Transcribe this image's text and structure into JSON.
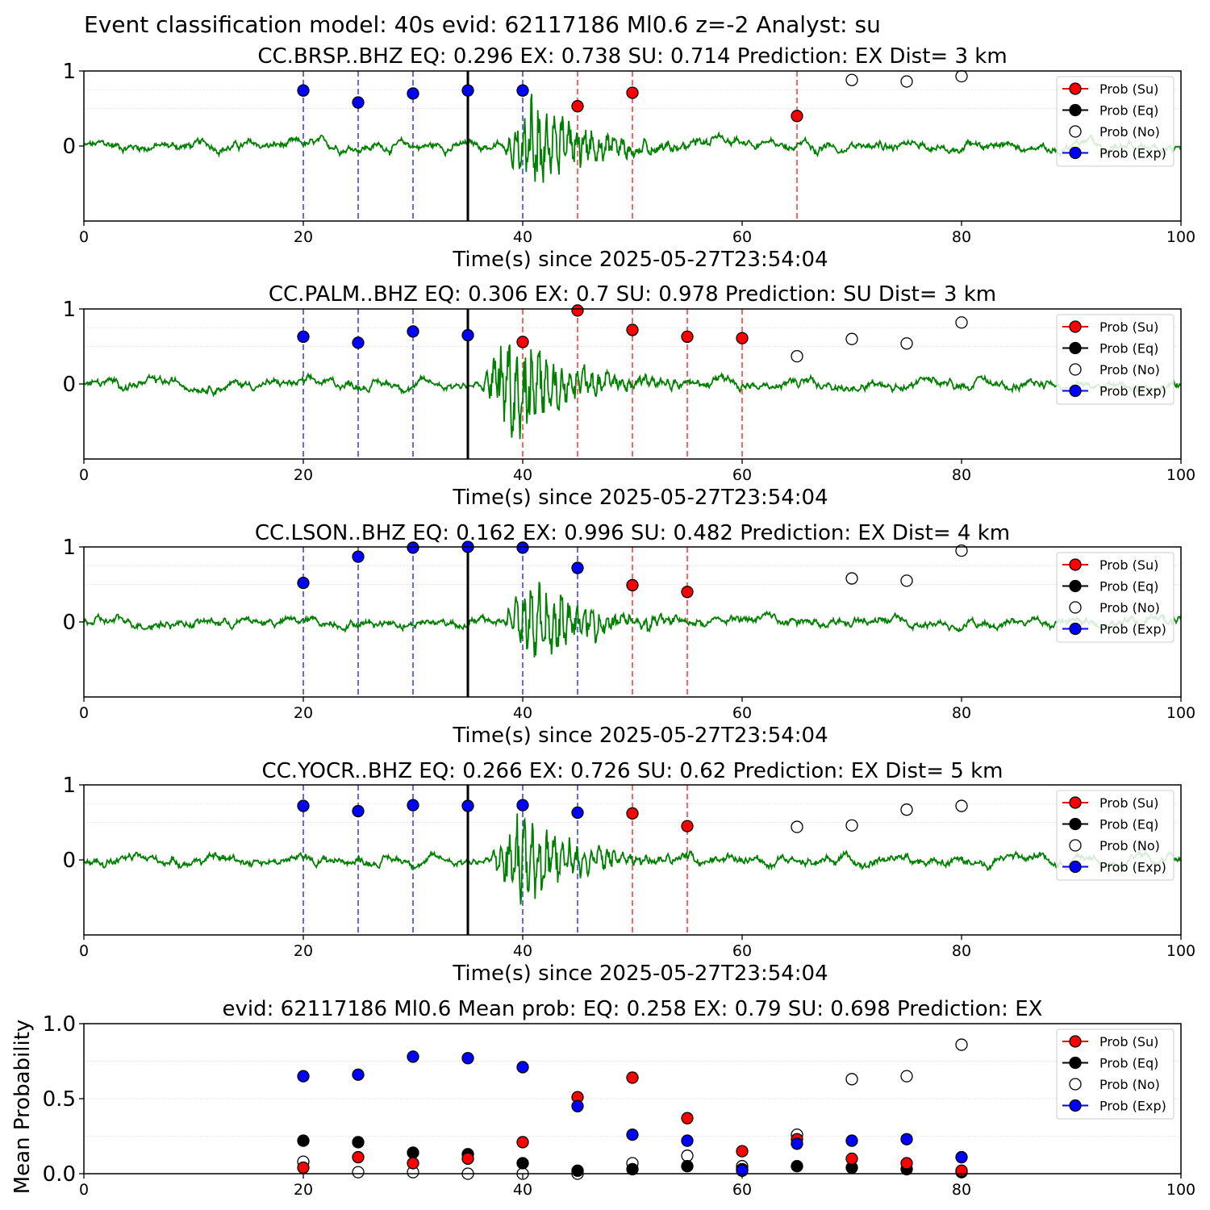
{
  "suptitle": "Event classification model: 40s evid: 62117186 Ml0.6 z=-2 Analyst: su",
  "colors": {
    "su": "#ff0000",
    "eq": "#000000",
    "no": "#ffffff",
    "exp": "#0000ff",
    "trace": "#008000",
    "vline_exp": "#5555ff",
    "vline_su": "#ff5555",
    "pick": "#000000"
  },
  "legend": [
    "Prob (Su)",
    "Prob (Eq)",
    "Prob (No)",
    "Prob (Exp)"
  ],
  "chart_data": [
    {
      "type": "scatter",
      "station": "CC.BRSP..BHZ",
      "title": "CC.BRSP..BHZ   EQ: 0.296  EX: 0.738  SU: 0.714   Prediction: EX    Dist= 3 km",
      "xlabel": "Time(s) since 2025-05-27T23:54:04",
      "xlim": [
        0,
        100
      ],
      "ylim": [
        -1,
        1
      ],
      "xticks": [
        "0",
        "20",
        "40",
        "60",
        "80",
        "100"
      ],
      "yticks": [
        "0",
        "1"
      ],
      "pick_time": 35,
      "event_onset": 38,
      "trace_amplitude": 0.55,
      "exp_lines": [
        20,
        25,
        30,
        40
      ],
      "su_lines": [
        45,
        50,
        65
      ],
      "series": [
        {
          "name": "Prob (Exp)",
          "x": [
            20,
            25,
            30,
            35,
            40
          ],
          "y": [
            0.74,
            0.58,
            0.7,
            0.74,
            0.74
          ]
        },
        {
          "name": "Prob (Su)",
          "x": [
            45,
            50,
            65
          ],
          "y": [
            0.53,
            0.71,
            0.4
          ]
        },
        {
          "name": "Prob (No)",
          "x": [
            70,
            75,
            80
          ],
          "y": [
            0.88,
            0.86,
            0.93
          ]
        }
      ]
    },
    {
      "type": "scatter",
      "station": "CC.PALM..BHZ",
      "title": "CC.PALM..BHZ   EQ: 0.306  EX: 0.7  SU: 0.978   Prediction: SU    Dist= 3 km",
      "xlabel": "Time(s) since 2025-05-27T23:54:04",
      "xlim": [
        0,
        100
      ],
      "ylim": [
        -1,
        1
      ],
      "xticks": [
        "0",
        "20",
        "40",
        "60",
        "80",
        "100"
      ],
      "yticks": [
        "0",
        "1"
      ],
      "pick_time": 35,
      "event_onset": 36,
      "trace_amplitude": 0.7,
      "exp_lines": [
        20,
        25,
        30
      ],
      "su_lines": [
        40,
        45,
        50,
        55,
        60
      ],
      "series": [
        {
          "name": "Prob (Exp)",
          "x": [
            20,
            25,
            30,
            35
          ],
          "y": [
            0.63,
            0.55,
            0.7,
            0.65
          ]
        },
        {
          "name": "Prob (Su)",
          "x": [
            40,
            45,
            50,
            55,
            60
          ],
          "y": [
            0.56,
            0.98,
            0.72,
            0.63,
            0.61
          ]
        },
        {
          "name": "Prob (No)",
          "x": [
            65,
            70,
            75,
            80
          ],
          "y": [
            0.37,
            0.6,
            0.54,
            0.82
          ]
        }
      ]
    },
    {
      "type": "scatter",
      "station": "CC.LSON..BHZ",
      "title": "CC.LSON..BHZ   EQ: 0.162  EX: 0.996  SU: 0.482   Prediction: EX    Dist= 4 km",
      "xlabel": "Time(s) since 2025-05-27T23:54:04",
      "xlim": [
        0,
        100
      ],
      "ylim": [
        -1,
        1
      ],
      "xticks": [
        "0",
        "20",
        "40",
        "60",
        "80",
        "100"
      ],
      "yticks": [
        "0",
        "1"
      ],
      "pick_time": 35,
      "event_onset": 38,
      "trace_amplitude": 0.5,
      "exp_lines": [
        20,
        25,
        30,
        40,
        45
      ],
      "su_lines": [
        50,
        55
      ],
      "series": [
        {
          "name": "Prob (Exp)",
          "x": [
            20,
            25,
            30,
            35,
            40,
            45
          ],
          "y": [
            0.52,
            0.87,
            0.99,
            1.0,
            0.99,
            0.72
          ]
        },
        {
          "name": "Prob (Su)",
          "x": [
            50,
            55
          ],
          "y": [
            0.49,
            0.4
          ]
        },
        {
          "name": "Prob (No)",
          "x": [
            70,
            75,
            80
          ],
          "y": [
            0.58,
            0.55,
            0.95
          ]
        }
      ]
    },
    {
      "type": "scatter",
      "station": "CC.YOCR..BHZ",
      "title": "CC.YOCR..BHZ   EQ: 0.266  EX: 0.726  SU: 0.62   Prediction: EX    Dist= 5 km",
      "xlabel": "Time(s) since 2025-05-27T23:54:04",
      "xlim": [
        0,
        100
      ],
      "ylim": [
        -1,
        1
      ],
      "xticks": [
        "0",
        "20",
        "40",
        "60",
        "80",
        "100"
      ],
      "yticks": [
        "0",
        "1"
      ],
      "pick_time": 35,
      "event_onset": 37,
      "trace_amplitude": 0.55,
      "exp_lines": [
        20,
        25,
        30,
        40,
        45
      ],
      "su_lines": [
        50,
        55
      ],
      "series": [
        {
          "name": "Prob (Exp)",
          "x": [
            20,
            25,
            30,
            35,
            40,
            45
          ],
          "y": [
            0.72,
            0.65,
            0.73,
            0.72,
            0.73,
            0.63
          ]
        },
        {
          "name": "Prob (Su)",
          "x": [
            50,
            55
          ],
          "y": [
            0.62,
            0.45
          ]
        },
        {
          "name": "Prob (No)",
          "x": [
            65,
            70,
            75,
            80
          ],
          "y": [
            0.44,
            0.46,
            0.67,
            0.72
          ]
        }
      ]
    },
    {
      "type": "scatter",
      "title": "evid: 62117186  Ml0.6   Mean prob:   EQ: 0.258  EX: 0.79  SU: 0.698   Prediction: EX",
      "ylabel": "Mean Probability",
      "xlim": [
        0,
        100
      ],
      "ylim": [
        0,
        1
      ],
      "xticks": [
        "0",
        "20",
        "40",
        "60",
        "80",
        "100"
      ],
      "yticks": [
        "0.0",
        "0.5",
        "1.0"
      ],
      "x": [
        20,
        25,
        30,
        35,
        40,
        45,
        50,
        55,
        60,
        65,
        70,
        75,
        80
      ],
      "series": [
        {
          "name": "Prob (No)",
          "y": [
            0.08,
            0.01,
            0.01,
            0.0,
            0.0,
            0.0,
            0.07,
            0.12,
            0.05,
            0.26,
            0.63,
            0.65,
            0.86
          ]
        },
        {
          "name": "Prob (Eq)",
          "y": [
            0.22,
            0.21,
            0.14,
            0.13,
            0.07,
            0.02,
            0.03,
            0.05,
            0.03,
            0.05,
            0.04,
            0.03,
            0.01
          ]
        },
        {
          "name": "Prob (Su)",
          "y": [
            0.04,
            0.11,
            0.07,
            0.1,
            0.21,
            0.51,
            0.64,
            0.37,
            0.15,
            0.23,
            0.1,
            0.07,
            0.02
          ]
        },
        {
          "name": "Prob (Exp)",
          "y": [
            0.65,
            0.66,
            0.78,
            0.77,
            0.71,
            0.45,
            0.26,
            0.22,
            0.02,
            0.2,
            0.22,
            0.23,
            0.11
          ]
        }
      ]
    }
  ]
}
